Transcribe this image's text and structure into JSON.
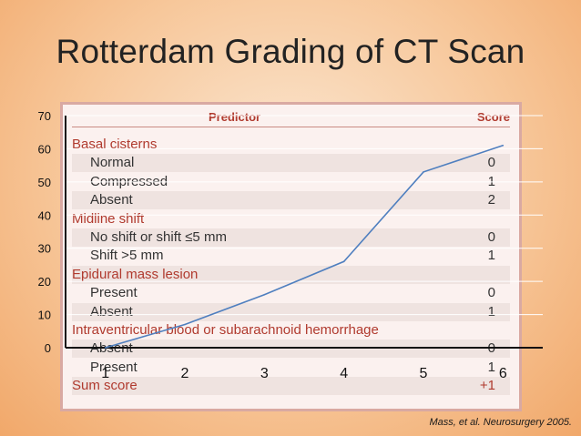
{
  "slide": {
    "title": "Rotterdam Grading of CT Scan",
    "citation": "Mass, et al. Neurosurgery 2005."
  },
  "table": {
    "header": {
      "predictor": "Predictor",
      "score": "Score"
    },
    "rows": [
      {
        "label": "Basal cisterns",
        "score": "",
        "kind": "section"
      },
      {
        "label": "Normal",
        "score": "0",
        "kind": "item"
      },
      {
        "label": "Compressed",
        "score": "1",
        "kind": "item"
      },
      {
        "label": "Absent",
        "score": "2",
        "kind": "item"
      },
      {
        "label": "Midline shift",
        "score": "",
        "kind": "section"
      },
      {
        "label": "No shift or shift ≤5 mm",
        "score": "0",
        "kind": "item"
      },
      {
        "label": "Shift >5 mm",
        "score": "1",
        "kind": "item"
      },
      {
        "label": "Epidural mass lesion",
        "score": "",
        "kind": "section"
      },
      {
        "label": "Present",
        "score": "0",
        "kind": "item"
      },
      {
        "label": "Absent",
        "score": "1",
        "kind": "item"
      },
      {
        "label": "Intraventricular blood or subarachnoid hemorrhage",
        "score": "",
        "kind": "section"
      },
      {
        "label": "Absent",
        "score": "0",
        "kind": "item"
      },
      {
        "label": "Present",
        "score": "1",
        "kind": "item"
      },
      {
        "label": "Sum score",
        "score": "+1",
        "kind": "section"
      }
    ]
  },
  "chart_data": {
    "type": "line",
    "title": "",
    "xlabel": "",
    "ylabel": "",
    "x": [
      1,
      2,
      3,
      4,
      5,
      6
    ],
    "series": [
      {
        "values": [
          0,
          7,
          16,
          26,
          53,
          61
        ],
        "color": "#4f7fbf"
      }
    ],
    "xlim": [
      0.5,
      6.5
    ],
    "ylim": [
      0,
      70
    ],
    "yticks": [
      0,
      10,
      20,
      30,
      40,
      50,
      60,
      70
    ],
    "xticks": [
      1,
      2,
      3,
      4,
      5,
      6
    ],
    "grid": true,
    "legend": "none"
  }
}
